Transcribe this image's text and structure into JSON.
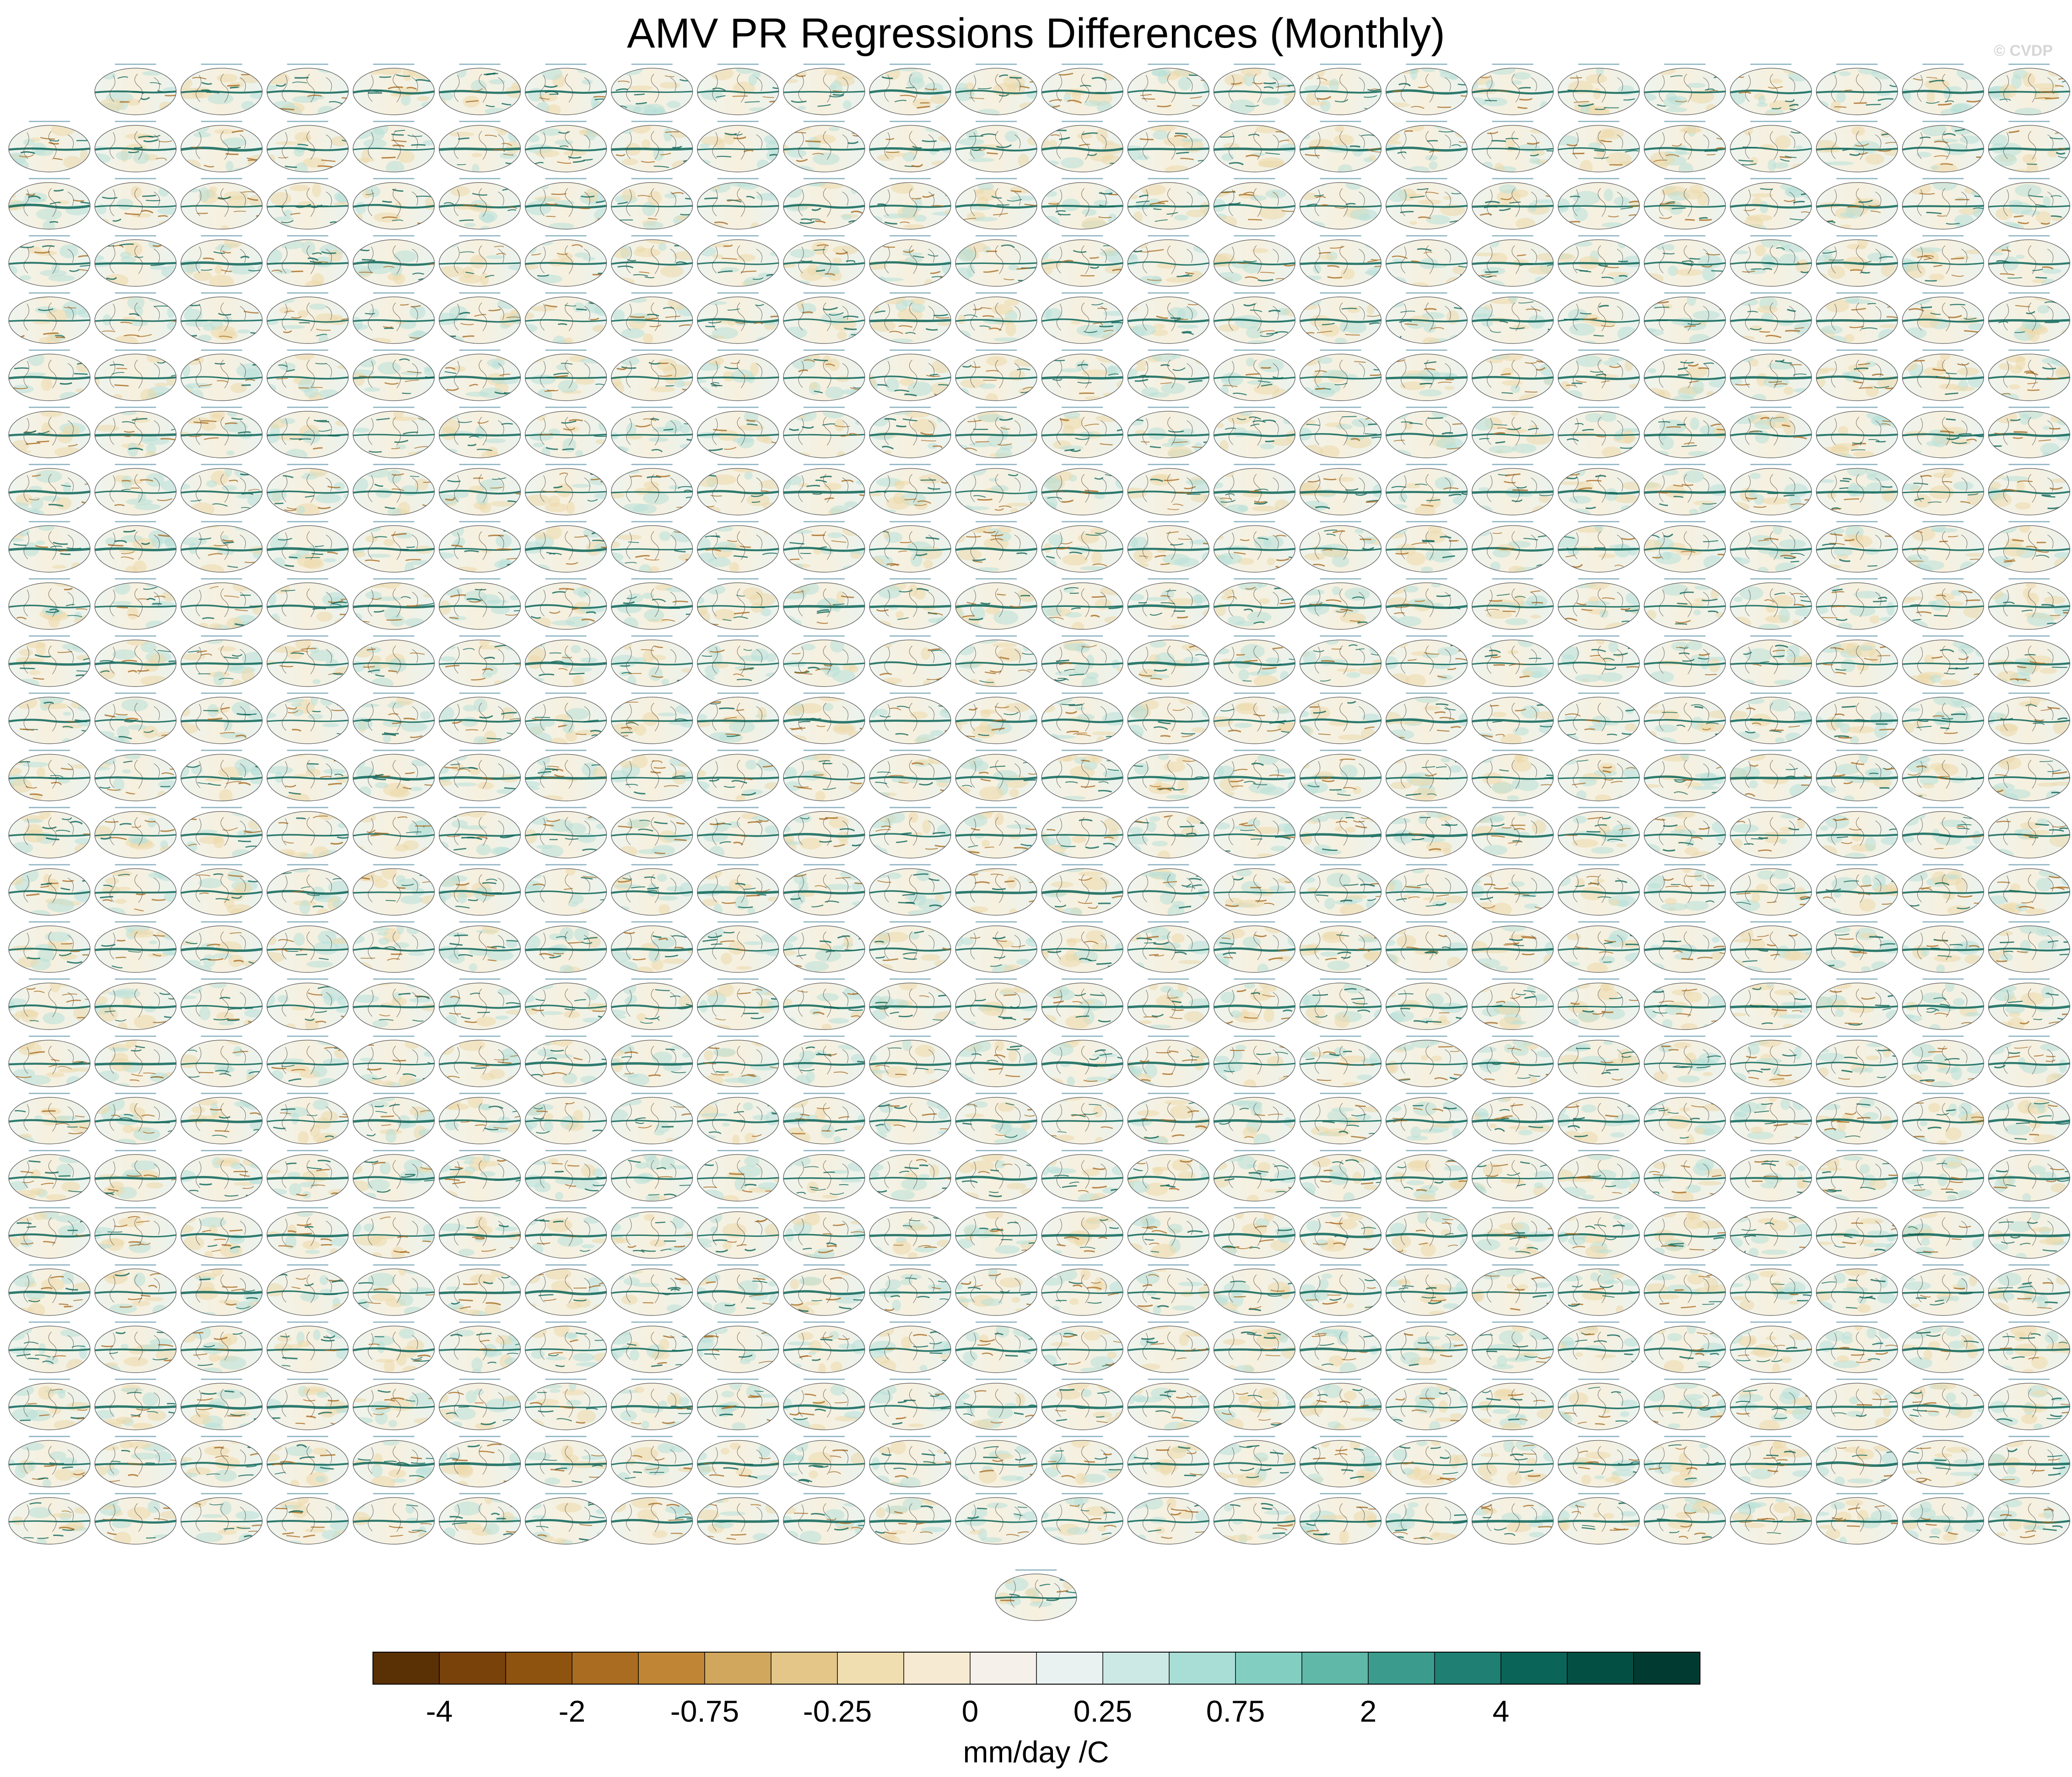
{
  "figure": {
    "title": "AMV PR Regressions Differences (Monthly)",
    "watermark": "© CVDP"
  },
  "chart_data": {
    "type": "heatmap",
    "title": "AMV PR Regressions Differences (Monthly)",
    "description_kind": "panel grid of global regression difference maps",
    "grid": {
      "rows": 26,
      "columns": 24,
      "first_row_columns": 23,
      "extra_bottom_panels": 1
    },
    "colorbar": {
      "label": "mm/day /C",
      "orientation": "horizontal",
      "colors": [
        "#5a3005",
        "#7a420b",
        "#8f5310",
        "#a96c20",
        "#c08636",
        "#d1a75e",
        "#e3c688",
        "#f0deb0",
        "#f6ead2",
        "#f5f1ea",
        "#e9f2f0",
        "#cde9e5",
        "#a8ded6",
        "#82cfc2",
        "#5fb8a8",
        "#3b9c8e",
        "#1e7f72",
        "#0a6458",
        "#044f44",
        "#013a30"
      ],
      "tick_labels": [
        "-4",
        "-2",
        "-0.75",
        "-0.25",
        "0",
        "0.25",
        "0.75",
        "2",
        "4"
      ],
      "tick_boundaries": [
        1,
        3,
        5,
        7,
        9,
        11,
        13,
        15,
        17
      ]
    },
    "grid_lines": false,
    "legend": "bottom"
  },
  "colors": {
    "dry": "#a96c20",
    "wet": "#0a6458",
    "ocean_base": "#f7f3e8",
    "coast": "#444444"
  }
}
